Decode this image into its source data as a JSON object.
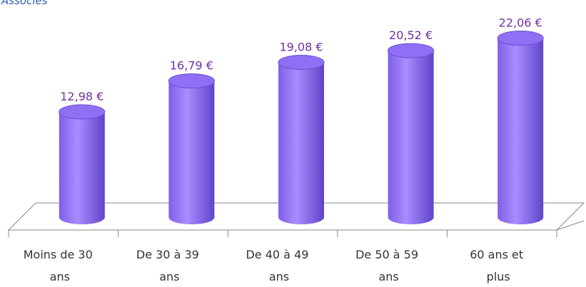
{
  "chart_data": {
    "type": "bar",
    "title": "Associés",
    "categories": [
      "Moins de 30 ans",
      "De 30 à 39 ans",
      "De 40 à 49 ans",
      "De 50 à 59 ans",
      "60 ans et plus"
    ],
    "values": [
      12.98,
      16.79,
      19.08,
      20.52,
      22.06
    ],
    "value_labels": [
      "12,98 €",
      "16,79 €",
      "19,08 €",
      "20,52 €",
      "22,06 €"
    ],
    "color": "#8f70f5"
  }
}
